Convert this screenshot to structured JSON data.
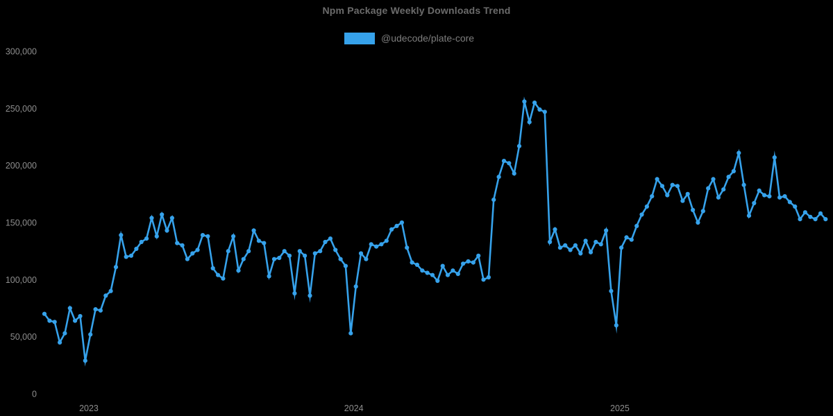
{
  "title": "Npm Package Weekly Downloads Trend",
  "legend": {
    "label": "@udecode/plate-core"
  },
  "colors": {
    "background": "#000000",
    "line": "#36a2eb",
    "marker": "#36a2eb",
    "title_text": "#6b6b6b",
    "legend_text": "#7d7d7d",
    "tick_text": "#8e8e8e"
  },
  "chart_data": {
    "type": "line",
    "title": "Npm Package Weekly Downloads Trend",
    "xlabel": "",
    "ylabel": "",
    "ylim": [
      0,
      300000
    ],
    "grid": false,
    "legend_position": "top-center",
    "markers": true,
    "x_unit": "week",
    "y_ticks": [
      {
        "label": "0",
        "value": 0
      },
      {
        "label": "50,000",
        "value": 50000
      },
      {
        "label": "100,000",
        "value": 100000
      },
      {
        "label": "150,000",
        "value": 150000
      },
      {
        "label": "200,000",
        "value": 200000
      },
      {
        "label": "250,000",
        "value": 250000
      },
      {
        "label": "300,000",
        "value": 300000
      }
    ],
    "x_ticks": [
      {
        "label": "2023",
        "index": 8.7
      },
      {
        "label": "2024",
        "index": 60.6
      },
      {
        "label": "2025",
        "index": 112.7
      }
    ],
    "series": [
      {
        "name": "@udecode/plate-core",
        "values": [
          70000,
          64000,
          63000,
          45000,
          53000,
          75000,
          64000,
          68000,
          29000,
          52000,
          74000,
          73000,
          86000,
          90000,
          111000,
          139000,
          120000,
          121000,
          127000,
          133000,
          136000,
          154000,
          138000,
          157000,
          143000,
          154000,
          132000,
          130000,
          118000,
          123000,
          126000,
          139000,
          138000,
          110000,
          104000,
          101000,
          125000,
          138000,
          108000,
          118000,
          125000,
          143000,
          134000,
          132000,
          103000,
          118000,
          119000,
          125000,
          121000,
          88000,
          125000,
          121000,
          86000,
          123000,
          125000,
          133000,
          136000,
          126000,
          118000,
          112000,
          53000,
          94000,
          123000,
          118000,
          131000,
          129000,
          131000,
          134000,
          144000,
          147000,
          150000,
          128000,
          115000,
          113000,
          108000,
          106000,
          104000,
          99000,
          112000,
          104000,
          108000,
          105000,
          114000,
          116000,
          115000,
          121000,
          100000,
          102000,
          170000,
          190000,
          204000,
          202000,
          193000,
          217000,
          256000,
          238000,
          255000,
          249000,
          247000,
          133000,
          144000,
          128000,
          130000,
          126000,
          130000,
          123000,
          134000,
          124000,
          133000,
          131000,
          143000,
          90000,
          60000,
          128000,
          137000,
          135000,
          147000,
          157000,
          164000,
          173000,
          188000,
          182000,
          174000,
          183000,
          182000,
          169000,
          175000,
          161000,
          150000,
          160000,
          180000,
          188000,
          172000,
          179000,
          190000,
          195000,
          211000,
          183000,
          156000,
          167000,
          178000,
          174000,
          173000,
          207000,
          172000,
          173000,
          168000,
          164000,
          153000,
          159000,
          155000,
          153000,
          158000,
          153000
        ]
      }
    ]
  }
}
